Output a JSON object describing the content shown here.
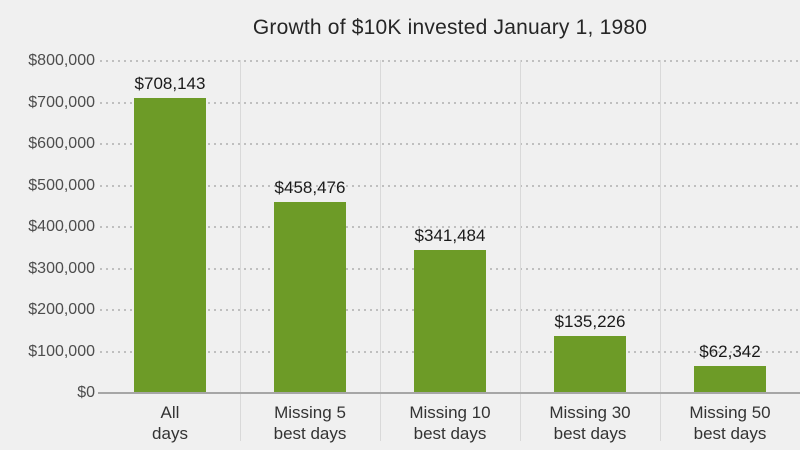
{
  "chart_data": {
    "type": "bar",
    "title": "Growth of $10K invested January 1, 1980",
    "categories": [
      [
        "All",
        "days"
      ],
      [
        "Missing 5",
        "best days"
      ],
      [
        "Missing 10",
        "best days"
      ],
      [
        "Missing 30",
        "best days"
      ],
      [
        "Missing 50",
        "best days"
      ]
    ],
    "values": [
      708143,
      458476,
      341484,
      135226,
      62342
    ],
    "value_labels": [
      "$708,143",
      "$458,476",
      "$341,484",
      "$135,226",
      "$62,342"
    ],
    "y_axis": {
      "range": [
        0,
        800000
      ],
      "tick_values": [
        0,
        100000,
        200000,
        300000,
        400000,
        500000,
        600000,
        700000,
        800000
      ],
      "tick_labels": [
        "$0",
        "$100,000",
        "$200,000",
        "$300,000",
        "$400,000",
        "$500,000",
        "$600,000",
        "$700,000",
        "$800,000"
      ]
    },
    "grid": "horizontal-dotted-with-vertical-category-separators",
    "legend": "none",
    "colors": {
      "background": "#f0f0f0",
      "bar": "#6d9b27",
      "gridline_dots": "#bfbfbf",
      "category_separator": "#d9d9d9",
      "axis_line": "#a6a6a6",
      "title_text": "#262626",
      "tick_text": "#4d4d4d",
      "x_tick_text": "#333333",
      "value_label_text": "#1a1a1a"
    }
  }
}
